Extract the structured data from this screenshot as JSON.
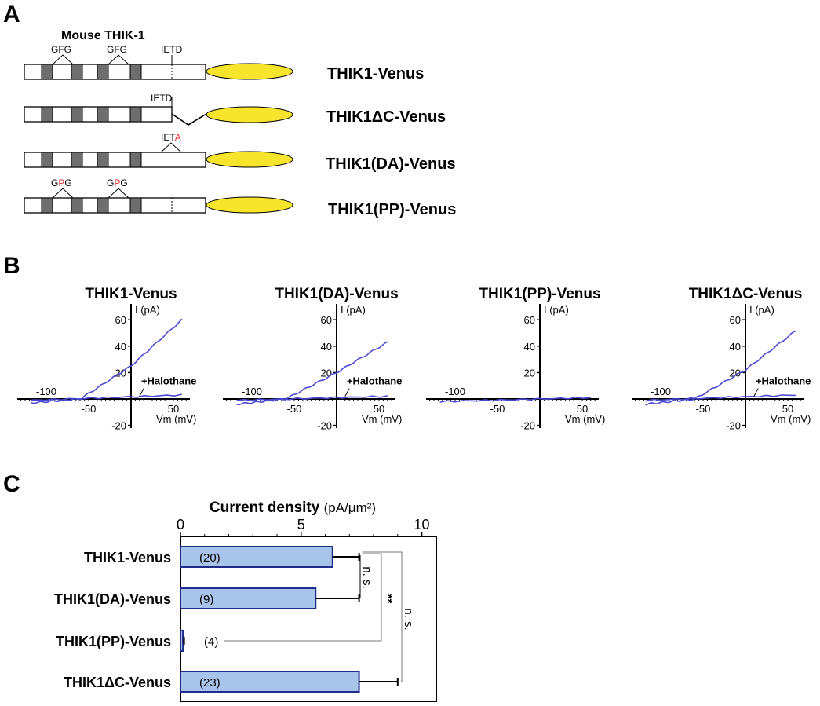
{
  "panel_letters": [
    "A",
    "B",
    "C"
  ],
  "panel_a": {
    "title": "Mouse THIK-1",
    "constructs": [
      {
        "name": "THIK1-Venus",
        "motifs": [
          "GFG",
          "GFG",
          "IETD"
        ],
        "linker": "straight"
      },
      {
        "name": "THIK1ΔC-Venus",
        "motifs": [
          "IETD"
        ],
        "linker": "v-shape"
      },
      {
        "name": "THIK1(DA)-Venus",
        "motifs": [
          "IETA"
        ],
        "linker": "straight"
      },
      {
        "name": "THIK1(PP)-Venus",
        "motifs": [
          "GPG",
          "GPG"
        ],
        "linker": "straight"
      }
    ],
    "motif_colors": {
      "normal": "#000000",
      "mutant": "#e8262a"
    },
    "venus_color": "#f7e52b"
  },
  "panel_b": {
    "y_axis_label": "I (pA)",
    "x_axis_label": "Vm (mV)",
    "halothane_label": "+Halothane",
    "y_ticks": [
      60,
      40,
      20,
      -20
    ],
    "x_ticks": [
      -100,
      -50,
      50
    ],
    "trace_color": "#4a4ad6",
    "plots": [
      {
        "title": "THIK1-Venus",
        "control": {
          "v": [
            -118,
            -60,
            0,
            60
          ],
          "i": [
            -3,
            0,
            25,
            60
          ]
        },
        "halothane": {
          "v": [
            -118,
            60
          ],
          "i": [
            -1,
            3
          ]
        },
        "show_halothane": true
      },
      {
        "title": "THIK1(DA)-Venus",
        "control": {
          "v": [
            -118,
            -60,
            0,
            60
          ],
          "i": [
            -4,
            0,
            20,
            43
          ]
        },
        "halothane": {
          "v": [
            -118,
            60
          ],
          "i": [
            -1,
            2
          ]
        },
        "show_halothane": true
      },
      {
        "title": "THIK1(PP)-Venus",
        "control": {
          "v": [
            -118,
            60
          ],
          "i": [
            -2,
            1
          ]
        },
        "halothane": null,
        "show_halothane": false
      },
      {
        "title": "THIK1ΔC-Venus",
        "control": {
          "v": [
            -118,
            -60,
            0,
            60
          ],
          "i": [
            -4,
            0,
            22,
            52
          ]
        },
        "halothane": {
          "v": [
            -118,
            60
          ],
          "i": [
            -1,
            3
          ]
        },
        "show_halothane": true
      }
    ]
  },
  "chart_data": {
    "type": "bar",
    "orientation": "horizontal",
    "title": "Current density",
    "unit": "(pA/μm²)",
    "categories": [
      "THIK1-Venus",
      "THIK1(DA)-Venus",
      "THIK1(PP)-Venus",
      "THIK1ΔC-Venus"
    ],
    "values": [
      6.3,
      5.6,
      0.1,
      7.4
    ],
    "errors": [
      1.1,
      1.8,
      0.05,
      1.6
    ],
    "n_labels": [
      "(20)",
      "(9)",
      "(4)",
      "(23)"
    ],
    "x_ticks": [
      0,
      5,
      10
    ],
    "xlim": [
      0,
      10.6
    ],
    "bar_color": "#a8c4ea",
    "bar_edge_color": "#1f2d8a",
    "significance": [
      {
        "from": 0,
        "to": 1,
        "label": "n. s."
      },
      {
        "from": 0,
        "to": 2,
        "label": "**"
      },
      {
        "from": 0,
        "to": 3,
        "label": "n. s."
      }
    ]
  }
}
